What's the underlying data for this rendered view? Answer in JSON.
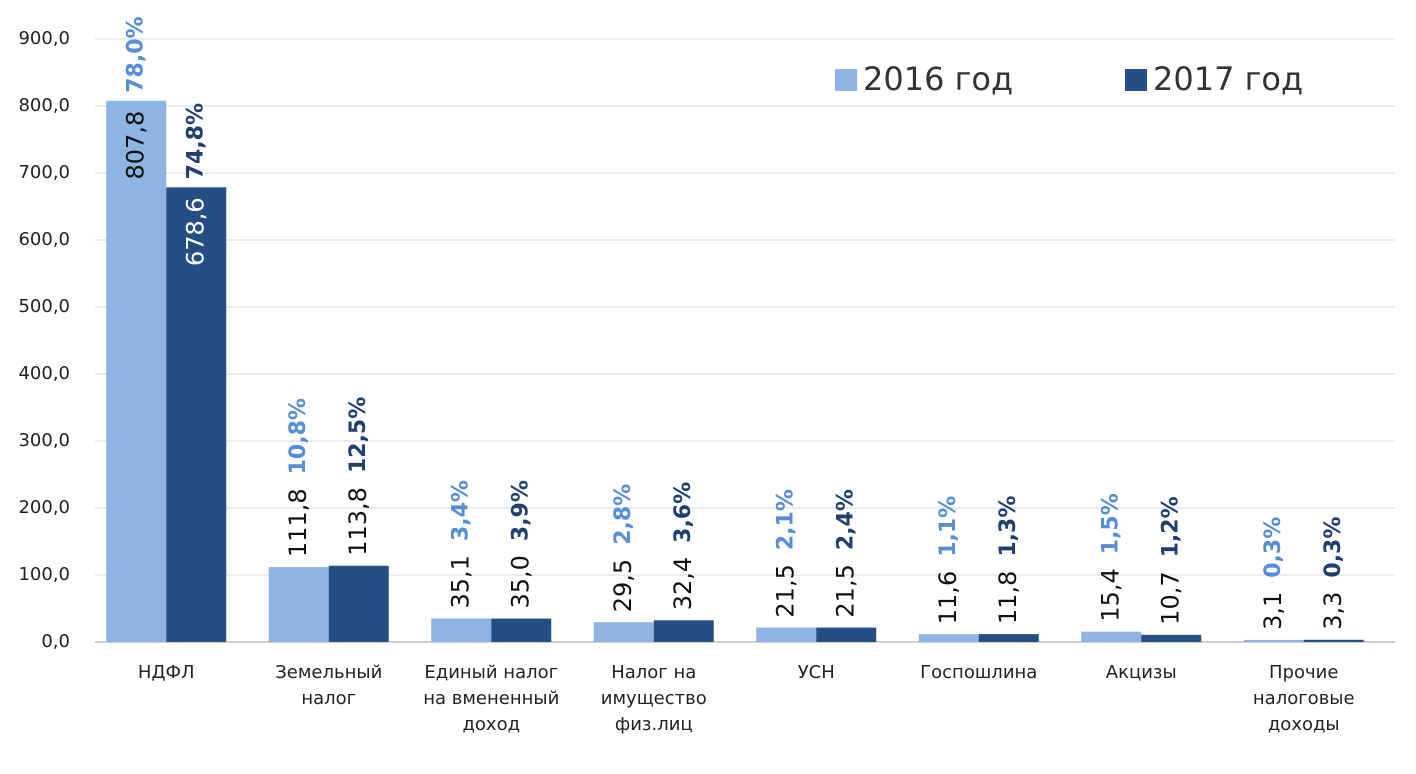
{
  "chart_data": {
    "type": "bar",
    "categories": [
      "НДФЛ",
      "Земельный налог",
      "Единый налог на вмененный доход",
      "Налог на имущество физ.лиц",
      "УСН",
      "Госпошлина",
      "Акцизы",
      "Прочие налоговые доходы"
    ],
    "series": [
      {
        "name": "2016 год",
        "color": "#8db4e2",
        "label_color": "#558ed5",
        "values": [
          807.8,
          111.8,
          35.1,
          29.5,
          21.5,
          11.6,
          15.4,
          3.1
        ],
        "value_labels": [
          "807,8",
          "111,8",
          "35,1",
          "29,5",
          "21,5",
          "11,6",
          "15,4",
          "3,1"
        ],
        "percent_labels": [
          "78,0%",
          "10,8%",
          "3,4%",
          "2,8%",
          "2,1%",
          "1,1%",
          "1,5%",
          "0,3%"
        ]
      },
      {
        "name": "2017 год",
        "color": "#254e84",
        "label_color": "#1f3f6e",
        "values": [
          678.6,
          113.8,
          35.0,
          32.4,
          21.5,
          11.8,
          10.7,
          3.3
        ],
        "value_labels": [
          "678,6",
          "113,8",
          "35,0",
          "32,4",
          "21,5",
          "11,8",
          "10,7",
          "3,3"
        ],
        "percent_labels": [
          "74,8%",
          "12,5%",
          "3,9%",
          "3,6%",
          "2,4%",
          "1,3%",
          "1,2%",
          "0,3%"
        ]
      }
    ],
    "ylim": [
      0,
      900
    ],
    "yticks": [
      {
        "value": 0,
        "label": "0,0"
      },
      {
        "value": 100,
        "label": "100,0"
      },
      {
        "value": 200,
        "label": "200,0"
      },
      {
        "value": 300,
        "label": "300,0"
      },
      {
        "value": 400,
        "label": "400,0"
      },
      {
        "value": 500,
        "label": "500,0"
      },
      {
        "value": 600,
        "label": "600,0"
      },
      {
        "value": 700,
        "label": "700,0"
      },
      {
        "value": 800,
        "label": "800,0"
      },
      {
        "value": 900,
        "label": "900,0"
      }
    ],
    "grid": true,
    "legend": "upper right"
  }
}
